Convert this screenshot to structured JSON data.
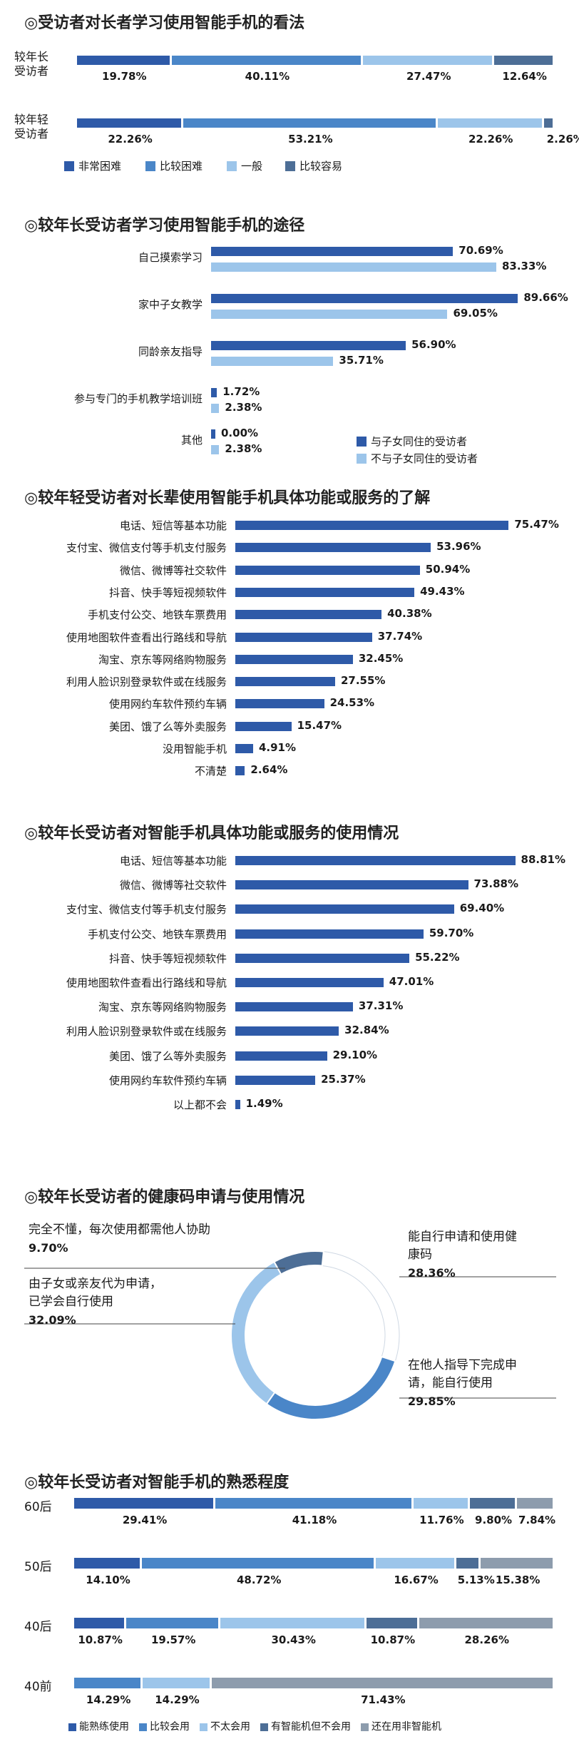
{
  "chart_data": [
    {
      "type": "bar",
      "stacked": true,
      "orientation": "horizontal",
      "title": "◎受访者对长者学习使用智能手机的看法",
      "categories": [
        "较年长受访者",
        "较年轻受访者"
      ],
      "category_lines": [
        [
          "较年长",
          "受访者"
        ],
        [
          "较年轻",
          "受访者"
        ]
      ],
      "series": [
        {
          "name": "非常困难",
          "values": [
            19.78,
            22.26
          ],
          "labels": [
            "19.78%",
            "22.26%"
          ],
          "color": "#2e5aa8"
        },
        {
          "name": "比较困难",
          "values": [
            40.11,
            53.21
          ],
          "labels": [
            "40.11%",
            "53.21%"
          ],
          "color": "#4a86c8"
        },
        {
          "name": "一般",
          "values": [
            27.47,
            22.26
          ],
          "labels": [
            "27.47%",
            "22.26%"
          ],
          "color": "#9cc5ea"
        },
        {
          "name": "比较容易",
          "values": [
            12.64,
            2.26
          ],
          "labels": [
            "12.64%",
            "2.26%"
          ],
          "color": "#4d6e96"
        }
      ],
      "xlim": [
        0,
        100
      ],
      "legend": "bottom"
    },
    {
      "type": "bar",
      "orientation": "horizontal",
      "title": "◎较年长受访者学习使用智能手机的途径",
      "categories": [
        "自己摸索学习",
        "家中子女教学",
        "同龄亲友指导",
        "参与专门的手机教学培训班",
        "其他"
      ],
      "series": [
        {
          "name": "与子女同住的受访者",
          "values": [
            70.69,
            89.66,
            56.9,
            1.72,
            0.0
          ],
          "labels": [
            "70.69%",
            "89.66%",
            "56.90%",
            "1.72%",
            "0.00%"
          ],
          "color": "#2e5aa8"
        },
        {
          "name": "不与子女同住的受访者",
          "values": [
            83.33,
            69.05,
            35.71,
            2.38,
            2.38
          ],
          "labels": [
            "83.33%",
            "69.05%",
            "35.71%",
            "2.38%",
            "2.38%"
          ],
          "color": "#9cc5ea"
        }
      ],
      "xlim": [
        0,
        100
      ],
      "legend": "bottom-right"
    },
    {
      "type": "bar",
      "orientation": "horizontal",
      "title": "◎较年轻受访者对长辈使用智能手机具体功能或服务的了解",
      "categories": [
        "电话、短信等基本功能",
        "支付宝、微信支付等手机支付服务",
        "微信、微博等社交软件",
        "抖音、快手等短视频软件",
        "手机支付公交、地铁车票费用",
        "使用地图软件查看出行路线和导航",
        "淘宝、京东等网络购物服务",
        "利用人脸识别登录软件或在线服务",
        "使用网约车软件预约车辆",
        "美团、饿了么等外卖服务",
        "没用智能手机",
        "不清楚"
      ],
      "values": [
        75.47,
        53.96,
        50.94,
        49.43,
        40.38,
        37.74,
        32.45,
        27.55,
        24.53,
        15.47,
        4.91,
        2.64
      ],
      "labels": [
        "75.47%",
        "53.96%",
        "50.94%",
        "49.43%",
        "40.38%",
        "37.74%",
        "32.45%",
        "27.55%",
        "24.53%",
        "15.47%",
        "4.91%",
        "2.64%"
      ],
      "color": "#2e5aa8",
      "xlim": [
        0,
        100
      ]
    },
    {
      "type": "bar",
      "orientation": "horizontal",
      "title": "◎较年长受访者对智能手机具体功能或服务的使用情况",
      "categories": [
        "电话、短信等基本功能",
        "微信、微博等社交软件",
        "支付宝、微信支付等手机支付服务",
        "手机支付公交、地铁车票费用",
        "抖音、快手等短视频软件",
        "使用地图软件查看出行路线和导航",
        "淘宝、京东等网络购物服务",
        "利用人脸识别登录软件或在线服务",
        "美团、饿了么等外卖服务",
        "使用网约车软件预约车辆",
        "以上都不会"
      ],
      "values": [
        88.81,
        73.88,
        69.4,
        59.7,
        55.22,
        47.01,
        37.31,
        32.84,
        29.1,
        25.37,
        1.49
      ],
      "labels": [
        "88.81%",
        "73.88%",
        "69.40%",
        "59.70%",
        "55.22%",
        "47.01%",
        "37.31%",
        "32.84%",
        "29.10%",
        "25.37%",
        "1.49%"
      ],
      "color": "#2e5aa8",
      "xlim": [
        0,
        100
      ]
    },
    {
      "type": "pie",
      "donut": true,
      "title": "◎较年长受访者的健康码申请与使用情况",
      "slices": [
        {
          "name": "能自行申请和使用健康码",
          "lines": [
            "能自行申请和使用健",
            "康码"
          ],
          "value": 28.36,
          "label": "28.36%",
          "color": "#ffffff"
        },
        {
          "name": "在他人指导下完成申请，能自行使用",
          "lines": [
            "在他人指导下完成申",
            "请，能自行使用"
          ],
          "value": 29.85,
          "label": "29.85%",
          "color": "#4a86c8"
        },
        {
          "name": "由子女或亲友代为申请，已学会自行使用",
          "lines": [
            "由子女或亲友代为申请，",
            "已学会自行使用"
          ],
          "value": 32.09,
          "label": "32.09%",
          "color": "#9cc5ea"
        },
        {
          "name": "完全不懂，每次使用都需他人协助",
          "lines": [
            "完全不懂，每次使用都需他人协助"
          ],
          "value": 9.7,
          "label": "9.70%",
          "color": "#4d6e96"
        }
      ]
    },
    {
      "type": "bar",
      "stacked": true,
      "orientation": "horizontal",
      "title": "◎较年长受访者对智能手机的熟悉程度",
      "categories": [
        "60后",
        "50后",
        "40后",
        "40前"
      ],
      "series": [
        {
          "name": "能熟练使用",
          "values": [
            29.41,
            14.1,
            10.87,
            0
          ],
          "labels": [
            "29.41%",
            "14.10%",
            "10.87%",
            ""
          ],
          "color": "#2e5aa8"
        },
        {
          "name": "比较会用",
          "values": [
            41.18,
            48.72,
            19.57,
            14.29
          ],
          "labels": [
            "41.18%",
            "48.72%",
            "19.57%",
            "14.29%"
          ],
          "color": "#4a86c8"
        },
        {
          "name": "不太会用",
          "values": [
            11.76,
            16.67,
            30.43,
            14.29
          ],
          "labels": [
            "11.76%",
            "16.67%",
            "30.43%",
            "14.29%"
          ],
          "color": "#9cc5ea"
        },
        {
          "name": "有智能机但不会用",
          "values": [
            9.8,
            5.13,
            10.87,
            0
          ],
          "labels": [
            "9.80%",
            "5.13%",
            "10.87%",
            ""
          ],
          "color": "#4d6e96"
        },
        {
          "name": "还在用非智能机",
          "values": [
            7.84,
            15.38,
            28.26,
            71.43
          ],
          "labels": [
            "7.84%",
            "15.38%",
            "28.26%",
            "71.43%"
          ],
          "color": "#8d9cad"
        }
      ],
      "xlim": [
        0,
        100
      ],
      "legend": "bottom"
    }
  ]
}
